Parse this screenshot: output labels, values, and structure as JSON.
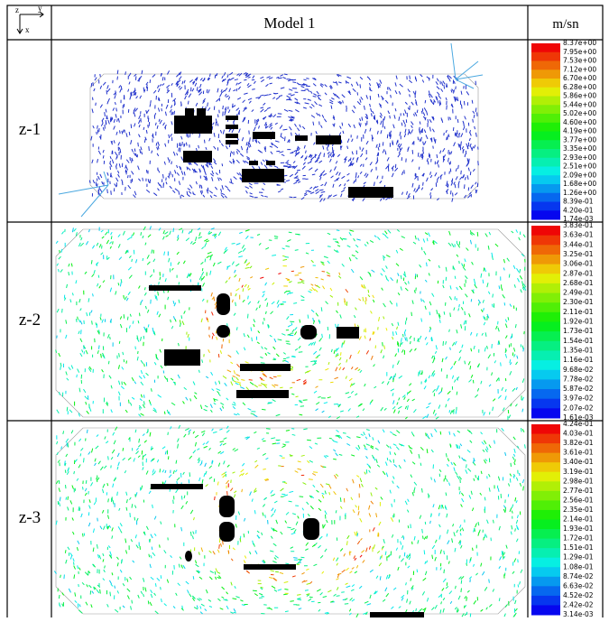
{
  "header": {
    "axis_icon": {
      "z": "z",
      "y": "y",
      "x": "x"
    },
    "model": "Model 1",
    "unit": "m/sn"
  },
  "rows": [
    {
      "label": "z-1",
      "colorbar": [
        "8.37e+00",
        "7.95e+00",
        "7.53e+00",
        "7.12e+00",
        "6.70e+00",
        "6.28e+00",
        "5.86e+00",
        "5.44e+00",
        "5.02e+00",
        "4.60e+00",
        "4.19e+00",
        "3.77e+00",
        "3.35e+00",
        "2.93e+00",
        "2.51e+00",
        "2.09e+00",
        "1.68e+00",
        "1.26e+00",
        "8.39e-01",
        "4.20e-01",
        "1.74e-03"
      ]
    },
    {
      "label": "z-2",
      "colorbar": [
        "3.83e-01",
        "3.63e-01",
        "3.44e-01",
        "3.25e-01",
        "3.06e-01",
        "2.87e-01",
        "2.68e-01",
        "2.49e-01",
        "2.30e-01",
        "2.11e-01",
        "1.92e-01",
        "1.73e-01",
        "1.54e-01",
        "1.35e-01",
        "1.16e-01",
        "9.68e-02",
        "7.78e-02",
        "5.87e-02",
        "3.97e-02",
        "2.07e-02",
        "1.61e-03"
      ]
    },
    {
      "label": "z-3",
      "colorbar": [
        "4.24e-01",
        "4.03e-01",
        "3.82e-01",
        "3.61e-01",
        "3.40e-01",
        "3.19e-01",
        "2.98e-01",
        "2.77e-01",
        "2.56e-01",
        "2.35e-01",
        "2.14e-01",
        "1.93e-01",
        "1.72e-01",
        "1.51e-01",
        "1.29e-01",
        "1.08e-01",
        "8.74e-02",
        "6.63e-02",
        "4.52e-02",
        "2.42e-02",
        "3.14e-03"
      ]
    }
  ]
}
